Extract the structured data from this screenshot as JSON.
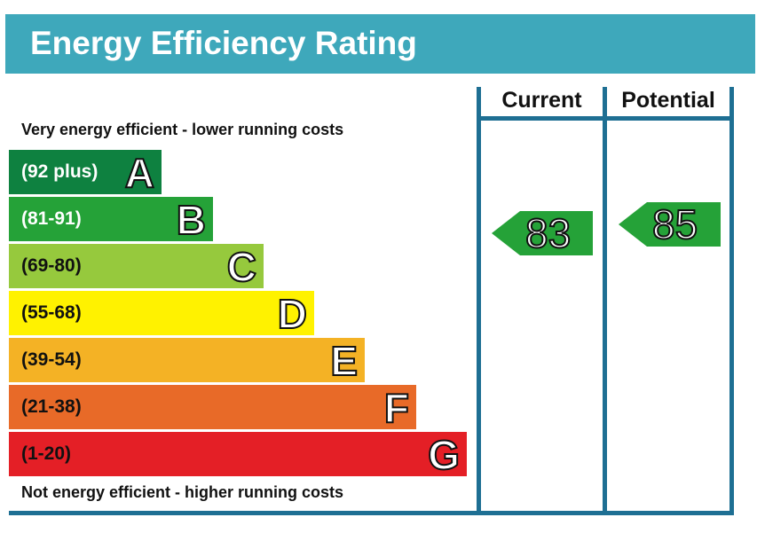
{
  "title": "Energy Efficiency Rating",
  "top_caption": "Very energy efficient - lower running costs",
  "bottom_caption": "Not energy efficient - higher running costs",
  "columns": {
    "current": "Current",
    "potential": "Potential"
  },
  "colors": {
    "header": "#3ea8bb",
    "frame": "#1e6f93"
  },
  "chart_data": {
    "type": "bar",
    "bands": [
      {
        "letter": "A",
        "range": "(92 plus)",
        "color": "#0e8140"
      },
      {
        "letter": "B",
        "range": "(81-91)",
        "color": "#25a238"
      },
      {
        "letter": "C",
        "range": "(69-80)",
        "color": "#96c93d"
      },
      {
        "letter": "D",
        "range": "(55-68)",
        "color": "#fff200"
      },
      {
        "letter": "E",
        "range": "(39-54)",
        "color": "#f4b225"
      },
      {
        "letter": "F",
        "range": "(21-38)",
        "color": "#e86a28"
      },
      {
        "letter": "G",
        "range": "(1-20)",
        "color": "#e41f26"
      }
    ],
    "current": {
      "value": "83",
      "band": "B",
      "color": "#25a238"
    },
    "potential": {
      "value": "85",
      "band": "B",
      "color": "#25a238"
    }
  }
}
